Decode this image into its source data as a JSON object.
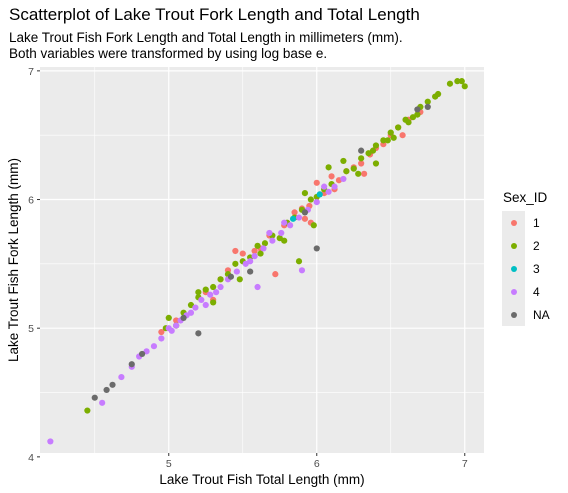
{
  "chart_data": {
    "type": "scatter",
    "title": "Scatterplot of Lake Trout Fork Length and Total Length",
    "subtitle_lines": [
      "Lake Trout Fish Fork Length and Total Length in millimeters (mm).",
      "Both variables were transformed by using log base e."
    ],
    "xlabel": "Lake Trout Fish Total Length (mm)",
    "ylabel": "Lake Trout Fish Fork Length (mm)",
    "xlim": [
      4.13,
      7.13
    ],
    "ylim": [
      4.03,
      7.03
    ],
    "x_ticks": [
      5,
      6,
      7
    ],
    "y_ticks": [
      4,
      5,
      6,
      7
    ],
    "x_tick_labels": [
      "5",
      "6",
      "7"
    ],
    "y_tick_labels": [
      "4",
      "5",
      "6",
      "7"
    ],
    "grid": true,
    "background": "#ebebeb",
    "legend": {
      "title": "Sex_ID",
      "position": "right",
      "entries": [
        {
          "label": "1",
          "color": "#F8766D"
        },
        {
          "label": "2",
          "color": "#7CAE00"
        },
        {
          "label": "3",
          "color": "#00BFC4"
        },
        {
          "label": "4",
          "color": "#C77CFF"
        },
        {
          "label": "NA",
          "color": "#6B6B6B"
        }
      ]
    },
    "series": [
      {
        "name": "1",
        "color": "#F8766D",
        "points": [
          [
            5.45,
            5.6
          ],
          [
            5.35,
            5.38
          ],
          [
            5.4,
            5.45
          ],
          [
            5.5,
            5.58
          ],
          [
            5.58,
            5.6
          ],
          [
            5.62,
            5.62
          ],
          [
            5.72,
            5.42
          ],
          [
            5.95,
            5.95
          ],
          [
            6.0,
            6.13
          ],
          [
            6.1,
            6.18
          ],
          [
            6.15,
            6.15
          ],
          [
            6.3,
            6.28
          ],
          [
            6.4,
            6.4
          ],
          [
            6.5,
            6.5
          ],
          [
            6.58,
            6.5
          ],
          [
            6.62,
            6.62
          ],
          [
            5.85,
            5.9
          ],
          [
            5.78,
            5.8
          ],
          [
            5.25,
            5.28
          ],
          [
            5.05,
            5.06
          ],
          [
            4.95,
            4.97
          ],
          [
            6.2,
            6.22
          ],
          [
            6.32,
            6.2
          ],
          [
            6.45,
            6.43
          ],
          [
            6.05,
            6.05
          ],
          [
            5.9,
            5.93
          ],
          [
            5.68,
            5.72
          ],
          [
            6.25,
            6.25
          ],
          [
            6.36,
            6.35
          ],
          [
            5.96,
            5.82
          ],
          [
            6.55,
            6.56
          ],
          [
            6.7,
            6.68
          ],
          [
            5.3,
            5.22
          ],
          [
            5.92,
            5.85
          ],
          [
            6.12,
            6.08
          ]
        ]
      },
      {
        "name": "2",
        "color": "#7CAE00",
        "points": [
          [
            4.45,
            4.36
          ],
          [
            5.0,
            5.08
          ],
          [
            5.1,
            5.12
          ],
          [
            5.2,
            5.24
          ],
          [
            5.3,
            5.32
          ],
          [
            5.4,
            5.42
          ],
          [
            5.5,
            5.52
          ],
          [
            5.55,
            5.55
          ],
          [
            5.6,
            5.64
          ],
          [
            5.7,
            5.72
          ],
          [
            5.75,
            5.7
          ],
          [
            5.8,
            5.82
          ],
          [
            5.85,
            5.86
          ],
          [
            5.88,
            5.52
          ],
          [
            5.9,
            5.92
          ],
          [
            6.0,
            6.02
          ],
          [
            6.05,
            6.08
          ],
          [
            6.1,
            6.12
          ],
          [
            6.2,
            6.22
          ],
          [
            6.25,
            6.24
          ],
          [
            6.3,
            6.32
          ],
          [
            6.35,
            6.36
          ],
          [
            6.4,
            6.42
          ],
          [
            6.45,
            6.46
          ],
          [
            6.5,
            6.52
          ],
          [
            6.55,
            6.56
          ],
          [
            6.6,
            6.62
          ],
          [
            6.65,
            6.64
          ],
          [
            6.7,
            6.72
          ],
          [
            6.75,
            6.76
          ],
          [
            6.8,
            6.8
          ],
          [
            6.9,
            6.9
          ],
          [
            6.95,
            6.92
          ],
          [
            6.98,
            6.92
          ],
          [
            7.0,
            6.88
          ],
          [
            6.4,
            6.28
          ],
          [
            6.18,
            6.3
          ],
          [
            6.08,
            6.25
          ],
          [
            5.96,
            6.0
          ],
          [
            5.2,
            5.28
          ],
          [
            5.3,
            5.2
          ],
          [
            5.48,
            5.38
          ],
          [
            5.62,
            5.58
          ],
          [
            5.78,
            5.68
          ],
          [
            5.98,
            5.8
          ],
          [
            6.48,
            6.46
          ],
          [
            6.62,
            6.6
          ],
          [
            5.35,
            5.38
          ],
          [
            5.15,
            5.18
          ],
          [
            5.25,
            5.3
          ],
          [
            5.45,
            5.5
          ],
          [
            5.65,
            5.66
          ],
          [
            5.92,
            6.05
          ],
          [
            6.28,
            6.2
          ],
          [
            6.38,
            6.38
          ],
          [
            6.52,
            6.48
          ],
          [
            6.68,
            6.66
          ],
          [
            6.82,
            6.82
          ],
          [
            5.05,
            5.02
          ],
          [
            4.98,
            5.0
          ]
        ]
      },
      {
        "name": "3",
        "color": "#00BFC4",
        "points": [
          [
            6.02,
            6.04
          ],
          [
            5.84,
            5.85
          ]
        ]
      },
      {
        "name": "4",
        "color": "#C77CFF",
        "points": [
          [
            4.2,
            4.12
          ],
          [
            4.55,
            4.42
          ],
          [
            4.68,
            4.62
          ],
          [
            4.75,
            4.7
          ],
          [
            4.85,
            4.82
          ],
          [
            4.9,
            4.86
          ],
          [
            4.95,
            4.92
          ],
          [
            5.0,
            5.0
          ],
          [
            5.05,
            5.02
          ],
          [
            5.08,
            5.06
          ],
          [
            5.12,
            5.1
          ],
          [
            5.18,
            5.16
          ],
          [
            5.22,
            5.22
          ],
          [
            5.28,
            5.26
          ],
          [
            5.35,
            5.32
          ],
          [
            5.4,
            5.38
          ],
          [
            5.46,
            5.44
          ],
          [
            5.52,
            5.5
          ],
          [
            5.58,
            5.56
          ],
          [
            5.64,
            5.62
          ],
          [
            5.68,
            5.74
          ],
          [
            5.7,
            5.68
          ],
          [
            5.76,
            5.74
          ],
          [
            5.82,
            5.8
          ],
          [
            5.88,
            5.86
          ],
          [
            5.94,
            5.92
          ],
          [
            6.0,
            5.98
          ],
          [
            6.08,
            6.06
          ],
          [
            6.12,
            6.1
          ],
          [
            5.6,
            5.32
          ],
          [
            5.9,
            5.45
          ],
          [
            5.32,
            5.28
          ],
          [
            5.15,
            5.12
          ],
          [
            4.8,
            4.78
          ],
          [
            5.02,
            4.98
          ],
          [
            5.55,
            5.52
          ],
          [
            5.78,
            5.82
          ],
          [
            6.05,
            6.1
          ],
          [
            6.18,
            6.16
          ],
          [
            5.25,
            5.18
          ]
        ]
      },
      {
        "name": "NA",
        "color": "#6B6B6B",
        "points": [
          [
            4.5,
            4.46
          ],
          [
            4.58,
            4.52
          ],
          [
            4.62,
            4.56
          ],
          [
            4.75,
            4.72
          ],
          [
            4.82,
            4.8
          ],
          [
            5.2,
            4.96
          ],
          [
            5.55,
            5.44
          ],
          [
            6.0,
            5.62
          ],
          [
            6.3,
            6.38
          ],
          [
            6.68,
            6.7
          ],
          [
            6.75,
            6.72
          ],
          [
            5.1,
            5.08
          ],
          [
            5.42,
            5.4
          ],
          [
            5.92,
            5.9
          ]
        ]
      }
    ]
  }
}
